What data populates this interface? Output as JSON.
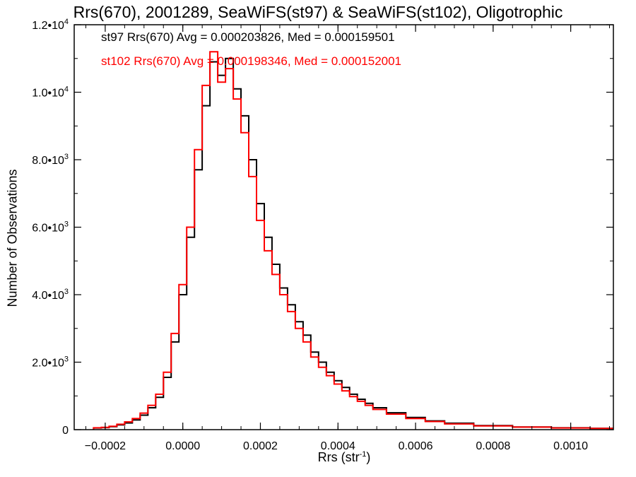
{
  "chart_data": {
    "type": "line",
    "title": "Rrs(670), 2001289, SeaWiFS(st97) & SeaWiFS(st102), Oligotrophic",
    "xlabel_base": "Rrs (str",
    "xlabel_sup": "-1",
    "xlabel_close": ")",
    "ylabel": "Number of Observations",
    "xlim": [
      -0.00028,
      0.00111
    ],
    "ylim": [
      0,
      12000
    ],
    "x_ticks": [
      {
        "value": -0.0002,
        "label": "-0.0002"
      },
      {
        "value": 0.0,
        "label": "0.0000"
      },
      {
        "value": 0.0002,
        "label": "0.0002"
      },
      {
        "value": 0.0004,
        "label": "0.0004"
      },
      {
        "value": 0.0006,
        "label": "0.0006"
      },
      {
        "value": 0.0008,
        "label": "0.0008"
      },
      {
        "value": 0.001,
        "label": "0.0010"
      }
    ],
    "y_ticks": [
      {
        "value": 0,
        "label": "0",
        "exp": ""
      },
      {
        "value": 2000,
        "label": "2.0•10",
        "exp": "3"
      },
      {
        "value": 4000,
        "label": "4.0•10",
        "exp": "3"
      },
      {
        "value": 6000,
        "label": "6.0•10",
        "exp": "3"
      },
      {
        "value": 8000,
        "label": "8.0•10",
        "exp": "3"
      },
      {
        "value": 10000,
        "label": "1.0•10",
        "exp": "4"
      },
      {
        "value": 12000,
        "label": "1.2•10",
        "exp": "4"
      }
    ],
    "annotations": [
      "st97 Rrs(670) Avg = 0.000203826, Med = 0.000159501",
      "st102 Rrs(670) Avg = 0.000198346, Med = 0.000152001"
    ],
    "series": [
      {
        "color": "#000000",
        "x": [
          -0.00022,
          -0.0002,
          -0.00018,
          -0.00016,
          -0.00014,
          -0.00012,
          -0.0001,
          -8e-05,
          -6e-05,
          -4e-05,
          -2e-05,
          0.0,
          2e-05,
          4e-05,
          6e-05,
          8e-05,
          0.0001,
          0.00012,
          0.00014,
          0.00016,
          0.00018,
          0.0002,
          0.00022,
          0.00024,
          0.00026,
          0.00028,
          0.0003,
          0.00032,
          0.00034,
          0.00036,
          0.00038,
          0.0004,
          0.00042,
          0.00044,
          0.00046,
          0.00048,
          0.0005,
          0.00055,
          0.0006,
          0.00065,
          0.0007,
          0.0008,
          0.0009,
          0.001,
          0.0011
        ],
        "values": [
          50,
          60,
          90,
          140,
          200,
          290,
          430,
          650,
          960,
          1550,
          2600,
          4000,
          5700,
          7700,
          9600,
          10900,
          10500,
          11000,
          10100,
          9300,
          8000,
          6700,
          5700,
          4900,
          4200,
          3700,
          3200,
          2800,
          2300,
          2000,
          1700,
          1450,
          1250,
          1050,
          900,
          780,
          650,
          500,
          360,
          260,
          190,
          120,
          80,
          55,
          40
        ]
      },
      {
        "color": "#ff0000",
        "x": [
          -0.00022,
          -0.0002,
          -0.00018,
          -0.00016,
          -0.00014,
          -0.00012,
          -0.0001,
          -8e-05,
          -6e-05,
          -4e-05,
          -2e-05,
          0.0,
          2e-05,
          4e-05,
          6e-05,
          8e-05,
          0.0001,
          0.00012,
          0.00014,
          0.00016,
          0.00018,
          0.0002,
          0.00022,
          0.00024,
          0.00026,
          0.00028,
          0.0003,
          0.00032,
          0.00034,
          0.00036,
          0.00038,
          0.0004,
          0.00042,
          0.00044,
          0.00046,
          0.00048,
          0.0005,
          0.00055,
          0.0006,
          0.00065,
          0.0007,
          0.0008,
          0.0009,
          0.001,
          0.0011
        ],
        "values": [
          55,
          70,
          100,
          160,
          230,
          330,
          490,
          720,
          1050,
          1700,
          2850,
          4300,
          6000,
          8300,
          10200,
          11200,
          10300,
          10700,
          9800,
          8800,
          7500,
          6200,
          5300,
          4600,
          4000,
          3500,
          3000,
          2600,
          2150,
          1850,
          1600,
          1350,
          1150,
          980,
          840,
          720,
          600,
          460,
          330,
          240,
          170,
          110,
          75,
          50,
          35
        ]
      }
    ]
  }
}
